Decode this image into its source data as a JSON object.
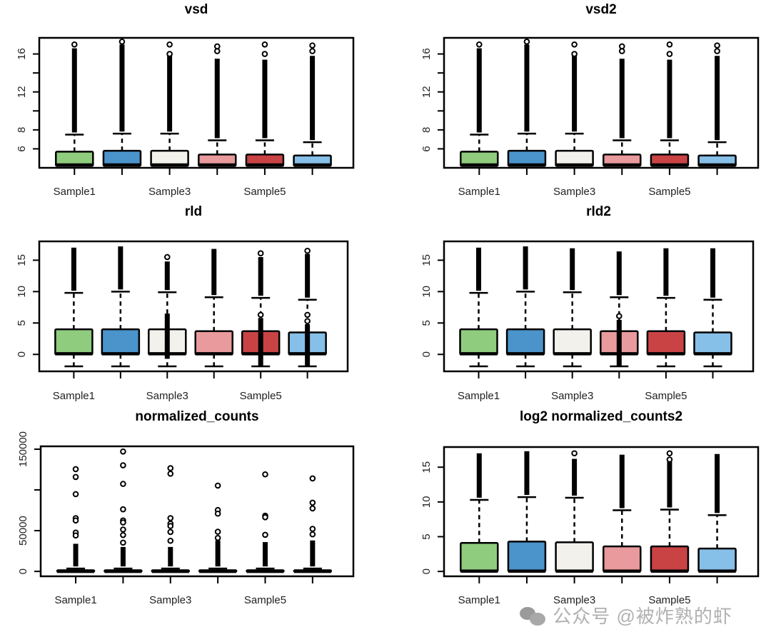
{
  "colors": [
    "#90CC7E",
    "#4B93CB",
    "#F2F1EB",
    "#E99A9C",
    "#C94345",
    "#86BFE8"
  ],
  "watermark": "公众号 @被炸熟的虾",
  "chart_data": [
    {
      "type": "box",
      "title": "vsd",
      "xlabel": "",
      "ylabel": "",
      "ylim": [
        4.0,
        17.7
      ],
      "yticks": [
        6,
        8,
        10,
        12,
        14,
        16
      ],
      "ytick_labels": [
        "6",
        "8",
        "",
        "12",
        "",
        "16"
      ],
      "tick_labels": [
        "Sample1",
        "",
        "Sample3",
        "",
        "Sample5",
        ""
      ],
      "boxes": [
        {
          "q1": 4.2,
          "median": 4.3,
          "q3": 5.7,
          "whisker_low": 4.2,
          "whisker_high": 7.5,
          "outlier_dense_top": 16.6,
          "outliers": [
            17.0
          ]
        },
        {
          "q1": 4.2,
          "median": 4.3,
          "q3": 5.8,
          "whisker_low": 4.2,
          "whisker_high": 7.6,
          "outlier_dense_top": 17.0,
          "outliers": [
            17.3
          ]
        },
        {
          "q1": 4.2,
          "median": 4.3,
          "q3": 5.8,
          "whisker_low": 4.2,
          "whisker_high": 7.6,
          "outlier_dense_top": 15.9,
          "outliers": [
            16.0,
            17.0
          ]
        },
        {
          "q1": 4.2,
          "median": 4.3,
          "q3": 5.4,
          "whisker_low": 4.2,
          "whisker_high": 6.9,
          "outlier_dense_top": 15.5,
          "outliers": [
            16.3,
            16.8
          ]
        },
        {
          "q1": 4.2,
          "median": 4.3,
          "q3": 5.4,
          "whisker_low": 4.2,
          "whisker_high": 6.9,
          "outlier_dense_top": 15.4,
          "outliers": [
            16.0,
            17.0
          ]
        },
        {
          "q1": 4.2,
          "median": 4.3,
          "q3": 5.3,
          "whisker_low": 4.2,
          "whisker_high": 6.7,
          "outlier_dense_top": 15.8,
          "outliers": [
            16.3,
            16.9
          ]
        }
      ]
    },
    {
      "type": "box",
      "title": "vsd2",
      "xlabel": "",
      "ylabel": "",
      "ylim": [
        4.0,
        17.7
      ],
      "yticks": [
        6,
        8,
        10,
        12,
        14,
        16
      ],
      "ytick_labels": [
        "6",
        "8",
        "",
        "12",
        "",
        "16"
      ],
      "tick_labels": [
        "Sample1",
        "",
        "Sample3",
        "",
        "Sample5",
        ""
      ],
      "boxes": [
        {
          "q1": 4.2,
          "median": 4.3,
          "q3": 5.7,
          "whisker_low": 4.2,
          "whisker_high": 7.5,
          "outlier_dense_top": 16.6,
          "outliers": [
            17.0
          ]
        },
        {
          "q1": 4.2,
          "median": 4.3,
          "q3": 5.8,
          "whisker_low": 4.2,
          "whisker_high": 7.6,
          "outlier_dense_top": 17.0,
          "outliers": [
            17.3
          ]
        },
        {
          "q1": 4.2,
          "median": 4.3,
          "q3": 5.8,
          "whisker_low": 4.2,
          "whisker_high": 7.6,
          "outlier_dense_top": 15.9,
          "outliers": [
            16.0,
            17.0
          ]
        },
        {
          "q1": 4.2,
          "median": 4.3,
          "q3": 5.4,
          "whisker_low": 4.2,
          "whisker_high": 6.9,
          "outlier_dense_top": 15.5,
          "outliers": [
            16.3,
            16.8
          ]
        },
        {
          "q1": 4.2,
          "median": 4.3,
          "q3": 5.4,
          "whisker_low": 4.2,
          "whisker_high": 6.9,
          "outlier_dense_top": 15.4,
          "outliers": [
            16.0,
            17.0
          ]
        },
        {
          "q1": 4.2,
          "median": 4.3,
          "q3": 5.3,
          "whisker_low": 4.2,
          "whisker_high": 6.7,
          "outlier_dense_top": 15.8,
          "outliers": [
            16.3,
            16.9
          ]
        }
      ]
    },
    {
      "type": "box",
      "title": "rld",
      "xlabel": "",
      "ylabel": "",
      "ylim": [
        -2.7,
        18.0
      ],
      "yticks": [
        0,
        5,
        10,
        15
      ],
      "ytick_labels": [
        "0",
        "5",
        "10",
        "15"
      ],
      "tick_labels": [
        "Sample1",
        "",
        "Sample3",
        "",
        "Sample5",
        ""
      ],
      "boxes": [
        {
          "q1": 0,
          "median": 0.1,
          "q3": 4.0,
          "whisker_low": -1.9,
          "whisker_high": 9.8,
          "outlier_dense_top": 17.0,
          "outliers": []
        },
        {
          "q1": 0,
          "median": 0.1,
          "q3": 4.0,
          "whisker_low": -1.9,
          "whisker_high": 10.0,
          "outlier_dense_top": 17.2,
          "outliers": []
        },
        {
          "q1": 0,
          "median": 0.1,
          "q3": 4.0,
          "whisker_low": -1.9,
          "whisker_high": 9.9,
          "outlier_dense_top": 14.8,
          "outliers": [
            15.5
          ],
          "inner_dense": [
            -0.7,
            6.5
          ]
        },
        {
          "q1": 0,
          "median": 0.1,
          "q3": 3.7,
          "whisker_low": -1.9,
          "whisker_high": 9.1,
          "outlier_dense_top": 16.8,
          "outliers": []
        },
        {
          "q1": 0,
          "median": 0.1,
          "q3": 3.7,
          "whisker_low": -1.9,
          "whisker_high": 9.0,
          "outlier_dense_top": 15.5,
          "outliers": [
            16.1,
            6.3
          ],
          "inner_dense": [
            -1.8,
            5.8
          ]
        },
        {
          "q1": 0,
          "median": 0.1,
          "q3": 3.5,
          "whisker_low": -1.9,
          "whisker_high": 8.7,
          "outlier_dense_top": 16.0,
          "outliers": [
            16.5,
            6.3,
            5.3
          ],
          "inner_dense": [
            -1.9,
            4.8
          ]
        }
      ]
    },
    {
      "type": "box",
      "title": "rld2",
      "xlabel": "",
      "ylabel": "",
      "ylim": [
        -2.7,
        18.0
      ],
      "yticks": [
        0,
        5,
        10,
        15
      ],
      "ytick_labels": [
        "0",
        "5",
        "10",
        "15"
      ],
      "tick_labels": [
        "Sample1",
        "",
        "Sample3",
        "",
        "Sample5",
        ""
      ],
      "boxes": [
        {
          "q1": 0,
          "median": 0.1,
          "q3": 4.0,
          "whisker_low": -1.9,
          "whisker_high": 9.8,
          "outlier_dense_top": 17.0,
          "outliers": []
        },
        {
          "q1": 0,
          "median": 0.1,
          "q3": 4.0,
          "whisker_low": -1.9,
          "whisker_high": 10.0,
          "outlier_dense_top": 17.2,
          "outliers": []
        },
        {
          "q1": 0,
          "median": 0.1,
          "q3": 4.0,
          "whisker_low": -1.9,
          "whisker_high": 9.9,
          "outlier_dense_top": 16.9,
          "outliers": []
        },
        {
          "q1": 0,
          "median": 0.1,
          "q3": 3.7,
          "whisker_low": -1.9,
          "whisker_high": 9.1,
          "outlier_dense_top": 16.4,
          "outliers": [
            6.1
          ],
          "inner_dense": [
            -1.8,
            5.5
          ]
        },
        {
          "q1": 0,
          "median": 0.1,
          "q3": 3.7,
          "whisker_low": -1.9,
          "whisker_high": 9.0,
          "outlier_dense_top": 16.9,
          "outliers": []
        },
        {
          "q1": 0,
          "median": 0.1,
          "q3": 3.5,
          "whisker_low": -1.9,
          "whisker_high": 8.7,
          "outlier_dense_top": 16.9,
          "outliers": []
        }
      ]
    },
    {
      "type": "box",
      "title": "normalized_counts",
      "xlabel": "",
      "ylabel": "",
      "ylim": [
        -6000,
        153500
      ],
      "yticks": [
        0,
        50000,
        100000,
        150000
      ],
      "ytick_labels": [
        "0",
        "50000",
        "",
        "150000"
      ],
      "tick_labels": [
        "Sample1",
        "",
        "Sample3",
        "",
        "Sample5",
        ""
      ],
      "boxes": [
        {
          "q1": 0,
          "median": 0,
          "q3": 1500,
          "whisker_low": 0,
          "whisker_high": 3500,
          "outlier_dense_top": 33900,
          "outliers": [
            125500,
            115900,
            94800,
            65400,
            62500,
            47600,
            44100
          ]
        },
        {
          "q1": 0,
          "median": 0,
          "q3": 1500,
          "whisker_low": 0,
          "whisker_high": 3500,
          "outlier_dense_top": 30000,
          "outliers": [
            147100,
            130200,
            107400,
            76200,
            62500,
            60100,
            51400,
            44600,
            35300
          ]
        },
        {
          "q1": 0,
          "median": 0,
          "q3": 1500,
          "whisker_low": 0,
          "whisker_high": 3500,
          "outlier_dense_top": 30000,
          "outliers": [
            126700,
            119900,
            65400,
            58700,
            55700,
            48400,
            37600
          ]
        },
        {
          "q1": 0,
          "median": 0,
          "q3": 1500,
          "whisker_low": 0,
          "whisker_high": 3500,
          "outlier_dense_top": 38000,
          "outliers": [
            105300,
            75300,
            70900,
            48700,
            41100
          ]
        },
        {
          "q1": 0,
          "median": 0,
          "q3": 1500,
          "whisker_low": 0,
          "whisker_high": 3500,
          "outlier_dense_top": 36000,
          "outliers": [
            119100,
            68300,
            66500,
            44900
          ]
        },
        {
          "q1": 0,
          "median": 0,
          "q3": 1500,
          "whisker_low": 0,
          "whisker_high": 3500,
          "outlier_dense_top": 38000,
          "outliers": [
            114100,
            84300,
            77300,
            52200,
            45500
          ]
        }
      ]
    },
    {
      "type": "box",
      "title": "log2 normalized_counts2",
      "xlabel": "",
      "ylabel": "",
      "ylim": [
        -0.7,
        17.9
      ],
      "yticks": [
        0,
        5,
        10,
        15
      ],
      "ytick_labels": [
        "0",
        "5",
        "10",
        "15"
      ],
      "tick_labels": [
        "Sample1",
        "",
        "Sample3",
        "",
        "Sample5",
        ""
      ],
      "boxes": [
        {
          "q1": 0,
          "median": 0.05,
          "q3": 4.1,
          "whisker_low": 0,
          "whisker_high": 10.3,
          "outlier_dense_top": 17.0,
          "outliers": []
        },
        {
          "q1": 0,
          "median": 0.05,
          "q3": 4.3,
          "whisker_low": 0,
          "whisker_high": 10.7,
          "outlier_dense_top": 17.3,
          "outliers": []
        },
        {
          "q1": 0,
          "median": 0.05,
          "q3": 4.2,
          "whisker_low": 0,
          "whisker_high": 10.6,
          "outlier_dense_top": 16.2,
          "outliers": [
            17.0
          ]
        },
        {
          "q1": 0,
          "median": 0.05,
          "q3": 3.6,
          "whisker_low": 0,
          "whisker_high": 8.8,
          "outlier_dense_top": 16.8,
          "outliers": []
        },
        {
          "q1": 0,
          "median": 0.05,
          "q3": 3.6,
          "whisker_low": 0,
          "whisker_high": 8.9,
          "outlier_dense_top": 15.8,
          "outliers": [
            16.1,
            17.0
          ]
        },
        {
          "q1": 0,
          "median": 0.05,
          "q3": 3.3,
          "whisker_low": 0,
          "whisker_high": 8.1,
          "outlier_dense_top": 16.9,
          "outliers": []
        }
      ]
    }
  ]
}
